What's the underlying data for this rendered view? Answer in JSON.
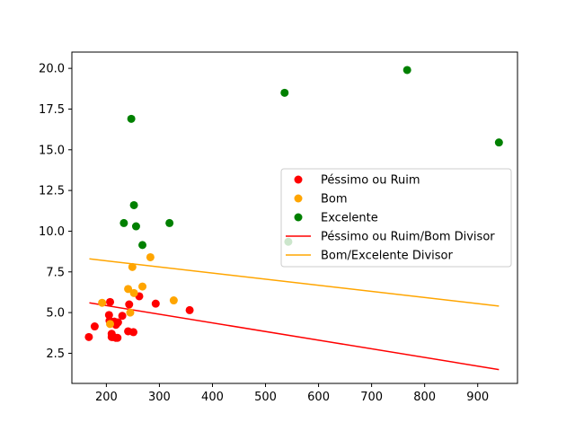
{
  "chart_data": {
    "type": "scatter",
    "title": "",
    "xlabel": "",
    "ylabel": "",
    "xlim": [
      135,
      975
    ],
    "ylim": [
      0.65,
      21.0
    ],
    "xticks": [
      200,
      300,
      400,
      500,
      600,
      700,
      800,
      900
    ],
    "yticks": [
      2.5,
      5.0,
      7.5,
      10.0,
      12.5,
      15.0,
      17.5,
      20.0
    ],
    "xtick_labels": [
      "200",
      "300",
      "400",
      "500",
      "600",
      "700",
      "800",
      "900"
    ],
    "ytick_labels": [
      "2.5",
      "5.0",
      "7.5",
      "10.0",
      "12.5",
      "15.0",
      "17.5",
      "20.0"
    ],
    "grid": false,
    "legend_position": "center-right",
    "series": [
      {
        "name": "Péssimo ou Ruim",
        "kind": "scatter",
        "color": "#ff0000",
        "points": [
          [
            167,
            3.5
          ],
          [
            178,
            4.15
          ],
          [
            205,
            4.85
          ],
          [
            206,
            4.5
          ],
          [
            207,
            5.65
          ],
          [
            210,
            3.7
          ],
          [
            210,
            3.5
          ],
          [
            212,
            3.5
          ],
          [
            215,
            4.45
          ],
          [
            218,
            3.45
          ],
          [
            218,
            4.25
          ],
          [
            220,
            4.35
          ],
          [
            221,
            3.45
          ],
          [
            222,
            4.4
          ],
          [
            230,
            4.8
          ],
          [
            241,
            3.85
          ],
          [
            243,
            5.5
          ],
          [
            251,
            3.8
          ],
          [
            262,
            6.0
          ],
          [
            293,
            5.55
          ],
          [
            357,
            5.15
          ]
        ]
      },
      {
        "name": "Bom",
        "kind": "scatter",
        "color": "#ffa500",
        "points": [
          [
            192,
            5.6
          ],
          [
            207,
            4.3
          ],
          [
            241,
            6.45
          ],
          [
            245,
            5.0
          ],
          [
            249,
            7.8
          ],
          [
            252,
            6.2
          ],
          [
            268,
            6.6
          ],
          [
            283,
            8.4
          ],
          [
            327,
            5.75
          ]
        ]
      },
      {
        "name": "Excelente",
        "kind": "scatter",
        "color": "#008000",
        "points": [
          [
            233,
            10.5
          ],
          [
            247,
            16.9
          ],
          [
            252,
            11.6
          ],
          [
            256,
            10.3
          ],
          [
            268,
            9.15
          ],
          [
            319,
            10.5
          ],
          [
            536,
            18.5
          ],
          [
            543,
            9.35
          ],
          [
            767,
            19.9
          ],
          [
            940,
            15.45
          ]
        ]
      },
      {
        "name": "Péssimo ou Ruim/Bom Divisor",
        "kind": "line",
        "color": "#ff0000",
        "points": [
          [
            168,
            5.6
          ],
          [
            940,
            1.5
          ]
        ]
      },
      {
        "name": "Bom/Excelente Divisor",
        "kind": "line",
        "color": "#ffa500",
        "points": [
          [
            168,
            8.3
          ],
          [
            940,
            5.4
          ]
        ]
      }
    ]
  }
}
